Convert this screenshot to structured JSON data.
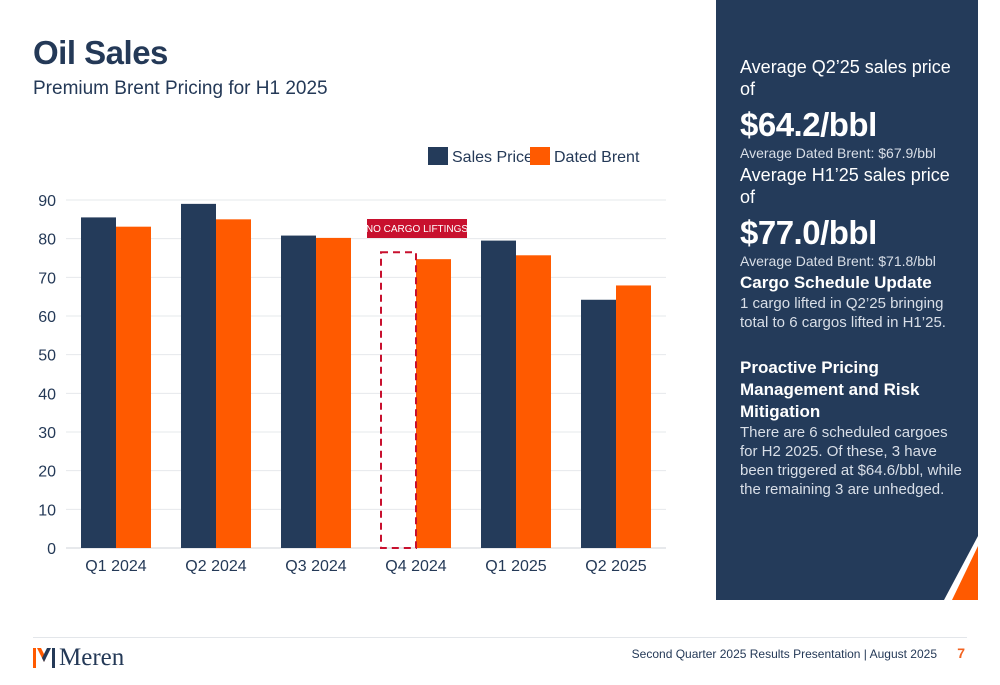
{
  "header": {
    "title": "Oil Sales",
    "subtitle": "Premium Brent Pricing for H1 2025"
  },
  "chart_data": {
    "type": "bar",
    "categories": [
      "Q1 2024",
      "Q2 2024",
      "Q3 2024",
      "Q4 2024",
      "Q1 2025",
      "Q2 2025"
    ],
    "series": [
      {
        "name": "Sales Price",
        "color": "#243b5a",
        "values": [
          85.5,
          89.0,
          80.8,
          null,
          79.5,
          64.2
        ]
      },
      {
        "name": "Dated Brent",
        "color": "#ff5a00",
        "values": [
          83.1,
          85.0,
          80.2,
          74.7,
          75.7,
          67.9
        ]
      }
    ],
    "ylim": [
      0,
      90
    ],
    "yticks": [
      0,
      10,
      20,
      30,
      40,
      50,
      60,
      70,
      80,
      90
    ],
    "grid": true,
    "legend_position": "top-right",
    "annotation": {
      "text": "NO CARGO LIFTINGS",
      "category": "Q4 2024",
      "color": "#c8102e"
    }
  },
  "panel": {
    "q2_lead": "Average Q2’25  sales price of",
    "q2_price": "$64.2/bbl",
    "q2_brent": "Average Dated Brent: $67.9/bbl",
    "h1_lead": "Average H1’25  sales price of",
    "h1_price": "$77.0/bbl",
    "h1_brent": "Average Dated Brent: $71.8/bbl",
    "cargo_heading": "Cargo Schedule Update",
    "cargo_body": "1 cargo lifted in Q2’25 bringing total to 6 cargos lifted in H1’25.",
    "pricing_heading": "Proactive Pricing Management and Risk Mitigation",
    "pricing_body": "There are 6 scheduled cargoes for H2 2025. Of these, 3 have been triggered at $64.6/bbl, while the remaining 3 are unhedged.",
    "bg_color": "#243b5a",
    "accent_color": "#ff5a00"
  },
  "footer": {
    "logo_text": "Meren",
    "presentation": "Second Quarter 2025 Results Presentation | August 2025",
    "page": "7"
  }
}
